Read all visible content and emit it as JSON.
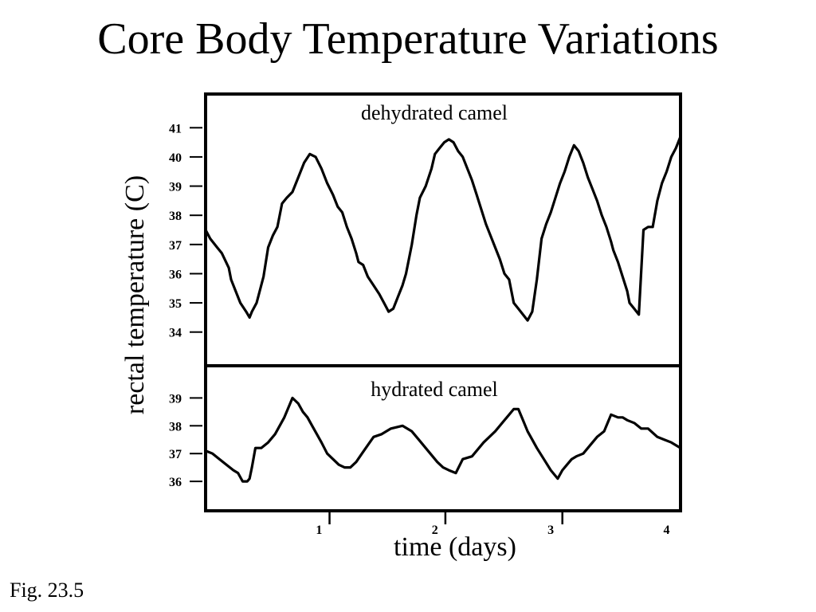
{
  "slide": {
    "title": "Core Body Temperature Variations",
    "caption": "Fig. 23.5"
  },
  "chart_data": {
    "type": "line",
    "ylabel": "rectal temperature (C)",
    "xlabel": "time (days)",
    "xlim": [
      0,
      4.1
    ],
    "xticks": [
      1,
      2,
      3,
      4
    ],
    "xtick_marks": [
      1.07,
      2.07,
      3.08
    ],
    "grid": false,
    "panels": [
      {
        "label": "dehydrated camel",
        "ylim": [
          32.9,
          42.1
        ],
        "yticks": [
          34,
          35,
          36,
          37,
          38,
          39,
          40,
          41
        ],
        "series": [
          {
            "x": [
              0,
              0.04,
              0.1,
              0.14,
              0.2,
              0.22,
              0.3,
              0.35,
              0.38,
              0.4,
              0.44,
              0.5,
              0.54,
              0.58,
              0.62,
              0.66,
              0.7,
              0.75,
              0.8,
              0.85,
              0.9,
              0.95,
              1.0,
              1.05,
              1.1,
              1.14,
              1.18,
              1.22,
              1.26,
              1.3,
              1.32,
              1.36,
              1.4,
              1.45,
              1.5,
              1.54,
              1.58,
              1.62,
              1.66,
              1.7,
              1.73,
              1.78,
              1.82,
              1.85,
              1.9,
              1.95,
              1.98,
              2.02,
              2.06,
              2.1,
              2.14,
              2.18,
              2.22,
              2.26,
              2.3,
              2.34,
              2.38,
              2.42,
              2.46,
              2.5,
              2.54,
              2.58,
              2.62,
              2.66,
              2.7,
              2.74,
              2.78,
              2.82,
              2.86,
              2.9,
              2.94,
              2.98,
              3.02,
              3.06,
              3.1,
              3.14,
              3.18,
              3.22,
              3.26,
              3.3,
              3.34,
              3.38,
              3.42,
              3.46,
              3.5,
              3.52,
              3.56,
              3.6,
              3.64,
              3.66,
              3.7,
              3.74,
              3.78,
              3.82,
              3.86,
              3.9,
              3.94,
              3.98,
              4.02,
              4.06,
              4.1
            ],
            "y": [
              37.5,
              37.2,
              36.9,
              36.7,
              36.2,
              35.8,
              35.0,
              34.7,
              34.5,
              34.7,
              35.0,
              35.9,
              36.9,
              37.3,
              37.6,
              38.4,
              38.6,
              38.8,
              39.3,
              39.8,
              40.1,
              40.0,
              39.6,
              39.1,
              38.7,
              38.3,
              38.1,
              37.6,
              37.2,
              36.7,
              36.4,
              36.3,
              35.9,
              35.6,
              35.3,
              35.0,
              34.7,
              34.8,
              35.2,
              35.6,
              36.0,
              37.0,
              38.0,
              38.6,
              39.0,
              39.6,
              40.1,
              40.3,
              40.5,
              40.6,
              40.5,
              40.2,
              40.0,
              39.6,
              39.2,
              38.7,
              38.2,
              37.7,
              37.3,
              36.9,
              36.5,
              36.0,
              35.8,
              35.0,
              34.8,
              34.6,
              34.4,
              34.7,
              35.8,
              37.2,
              37.7,
              38.1,
              38.6,
              39.1,
              39.5,
              40.0,
              40.4,
              40.2,
              39.8,
              39.3,
              38.9,
              38.5,
              38.0,
              37.6,
              37.1,
              36.8,
              36.4,
              35.9,
              35.4,
              35.0,
              34.8,
              34.6,
              37.5,
              37.6,
              37.6,
              38.5,
              39.1,
              39.5,
              40.0,
              40.3,
              40.7
            ]
          }
        ]
      },
      {
        "label": "hydrated camel",
        "ylim": [
          35.0,
          40.1
        ],
        "yticks": [
          36,
          37,
          38,
          39
        ],
        "series": [
          {
            "x": [
              0,
              0.06,
              0.12,
              0.18,
              0.24,
              0.28,
              0.32,
              0.36,
              0.38,
              0.4,
              0.43,
              0.48,
              0.54,
              0.6,
              0.68,
              0.75,
              0.8,
              0.84,
              0.88,
              0.92,
              0.96,
              1.0,
              1.05,
              1.1,
              1.15,
              1.2,
              1.25,
              1.3,
              1.35,
              1.4,
              1.45,
              1.52,
              1.6,
              1.7,
              1.78,
              1.84,
              1.88,
              1.92,
              1.96,
              2.0,
              2.05,
              2.1,
              2.16,
              2.22,
              2.3,
              2.4,
              2.5,
              2.6,
              2.66,
              2.7,
              2.74,
              2.78,
              2.82,
              2.86,
              2.92,
              2.98,
              3.04,
              3.08,
              3.12,
              3.16,
              3.2,
              3.26,
              3.32,
              3.38,
              3.44,
              3.5,
              3.56,
              3.6,
              3.64,
              3.7,
              3.76,
              3.82,
              3.9,
              3.96,
              4.02,
              4.06,
              4.1
            ],
            "y": [
              37.1,
              37.0,
              36.8,
              36.6,
              36.4,
              36.3,
              36.0,
              36.0,
              36.1,
              36.5,
              37.2,
              37.2,
              37.4,
              37.7,
              38.3,
              39.0,
              38.8,
              38.5,
              38.3,
              38.0,
              37.7,
              37.4,
              37.0,
              36.8,
              36.6,
              36.5,
              36.5,
              36.7,
              37.0,
              37.3,
              37.6,
              37.7,
              37.9,
              38.0,
              37.8,
              37.5,
              37.3,
              37.1,
              36.9,
              36.7,
              36.5,
              36.4,
              36.3,
              36.8,
              36.9,
              37.4,
              37.8,
              38.3,
              38.6,
              38.6,
              38.2,
              37.8,
              37.5,
              37.2,
              36.8,
              36.4,
              36.1,
              36.4,
              36.6,
              36.8,
              36.9,
              37.0,
              37.3,
              37.6,
              37.8,
              38.4,
              38.3,
              38.3,
              38.2,
              38.1,
              37.9,
              37.9,
              37.6,
              37.5,
              37.4,
              37.3,
              37.2
            ]
          }
        ]
      }
    ]
  }
}
